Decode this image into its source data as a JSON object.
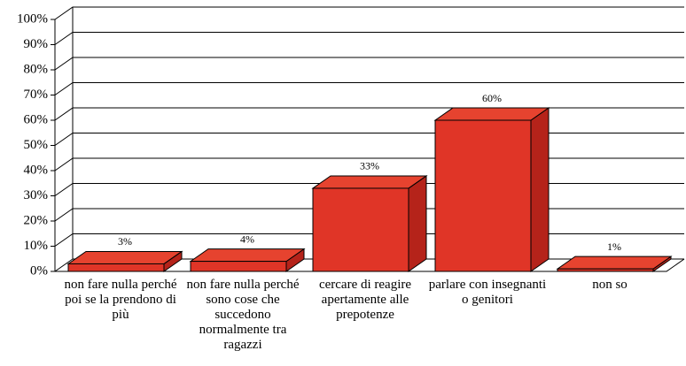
{
  "chart_data": {
    "type": "bar3d",
    "categories": [
      "non fare nulla perché poi se la prendono di più",
      "non fare nulla perché sono cose che succedono normalmente tra ragazzi",
      "cercare di reagire apertamente alle prepotenze",
      "parlare con insegnanti o genitori",
      "non so"
    ],
    "values": [
      3,
      4,
      33,
      60,
      1
    ],
    "value_labels": [
      "3%",
      "4%",
      "33%",
      "60%",
      "1%"
    ],
    "color": "#e03527",
    "ylim": [
      0,
      100
    ],
    "yticks": [
      {
        "value": 0,
        "label": "0%"
      },
      {
        "value": 10,
        "label": "10%"
      },
      {
        "value": 20,
        "label": "20%"
      },
      {
        "value": 30,
        "label": "30%"
      },
      {
        "value": 40,
        "label": "40%"
      },
      {
        "value": 50,
        "label": "50%"
      },
      {
        "value": 60,
        "label": "60%"
      },
      {
        "value": 70,
        "label": "70%"
      },
      {
        "value": 80,
        "label": "80%"
      },
      {
        "value": 90,
        "label": "90%"
      },
      {
        "value": 100,
        "label": "100%"
      }
    ],
    "grid": true
  }
}
